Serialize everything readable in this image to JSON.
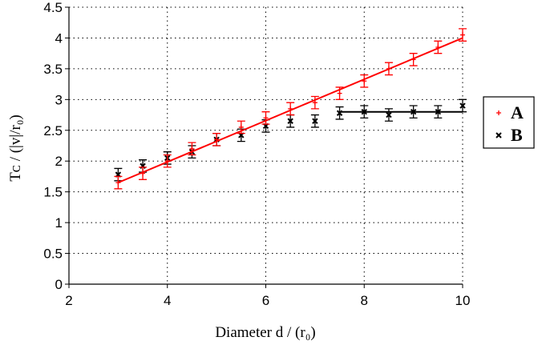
{
  "chart_data": {
    "type": "scatter",
    "title": "",
    "xlabel": "Diameter d / (r₀)",
    "ylabel": "Tᴄ / (|v|/r₀)",
    "xlim": [
      2,
      10
    ],
    "ylim": [
      0,
      4.5
    ],
    "xticks": [
      "2",
      "4",
      "6",
      "8",
      "10"
    ],
    "yticks": [
      "0",
      "0.5",
      "1",
      "1.5",
      "2",
      "2.5",
      "3",
      "3.5",
      "4",
      "4.5"
    ],
    "grid": true,
    "legend_placement": "right",
    "series": [
      {
        "name": "A",
        "color": "#ff0000",
        "marker": "plus",
        "x": [
          3,
          3.5,
          4,
          4.5,
          5,
          5.5,
          6,
          6.5,
          7,
          7.5,
          8,
          8.5,
          9,
          9.5,
          10
        ],
        "y": [
          1.65,
          1.8,
          2.0,
          2.2,
          2.35,
          2.55,
          2.7,
          2.85,
          2.95,
          3.1,
          3.3,
          3.5,
          3.65,
          3.85,
          4.05
        ],
        "error": 0.1,
        "fit_line": {
          "x": [
            3,
            10
          ],
          "y": [
            1.65,
            4.0
          ]
        }
      },
      {
        "name": "B",
        "color": "#000000",
        "marker": "x",
        "x": [
          3,
          3.5,
          4,
          4.5,
          5,
          5.5,
          6,
          6.5,
          7,
          7.5,
          8,
          8.5,
          9,
          9.5,
          10
        ],
        "y": [
          1.78,
          1.92,
          2.05,
          2.15,
          2.35,
          2.42,
          2.57,
          2.65,
          2.65,
          2.78,
          2.8,
          2.75,
          2.8,
          2.8,
          2.9
        ],
        "error": 0.1,
        "fit_line": {
          "x": [
            7.5,
            10
          ],
          "y": [
            2.8,
            2.8
          ]
        }
      }
    ]
  }
}
